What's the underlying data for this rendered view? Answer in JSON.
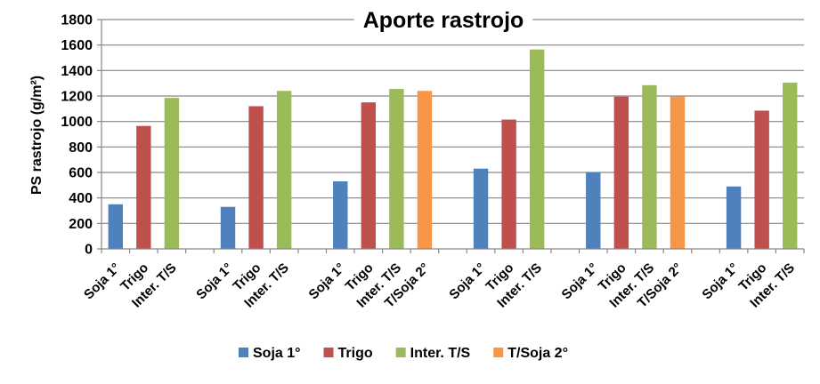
{
  "chart_data": {
    "type": "bar",
    "title": "Aporte rastrojo",
    "ylabel": "PS rastrojo (g/m²)",
    "ylim": [
      0,
      1800
    ],
    "yticks": [
      0,
      200,
      400,
      600,
      800,
      1000,
      1200,
      1400,
      1600,
      1800
    ],
    "grid": true,
    "legend_position": "bottom",
    "series": [
      {
        "name": "Soja 1°",
        "color": "#4F81BD"
      },
      {
        "name": "Trigo",
        "color": "#C0504D"
      },
      {
        "name": "Inter. T/S",
        "color": "#9BBB59"
      },
      {
        "name": "T/Soja 2°",
        "color": "#F79646"
      }
    ],
    "groups": [
      {
        "bars": [
          {
            "label": "Soja 1°",
            "series": 0,
            "value": 350
          },
          {
            "label": "Trigo",
            "series": 1,
            "value": 965
          },
          {
            "label": "Inter. T/S",
            "series": 2,
            "value": 1185
          }
        ]
      },
      {
        "bars": [
          {
            "label": "Soja 1°",
            "series": 0,
            "value": 330
          },
          {
            "label": "Trigo",
            "series": 1,
            "value": 1120
          },
          {
            "label": "Inter. T/S",
            "series": 2,
            "value": 1240
          }
        ]
      },
      {
        "bars": [
          {
            "label": "Soja 1°",
            "series": 0,
            "value": 530
          },
          {
            "label": "Trigo",
            "series": 1,
            "value": 1150
          },
          {
            "label": "Inter. T/S",
            "series": 2,
            "value": 1255
          },
          {
            "label": "T/Soja 2°",
            "series": 3,
            "value": 1240
          }
        ]
      },
      {
        "bars": [
          {
            "label": "Soja 1°",
            "series": 0,
            "value": 630
          },
          {
            "label": "Trigo",
            "series": 1,
            "value": 1015
          },
          {
            "label": "Inter. T/S",
            "series": 2,
            "value": 1565
          }
        ]
      },
      {
        "bars": [
          {
            "label": "Soja 1°",
            "series": 0,
            "value": 600
          },
          {
            "label": "Trigo",
            "series": 1,
            "value": 1195
          },
          {
            "label": "Inter. T/S",
            "series": 2,
            "value": 1285
          },
          {
            "label": "T/Soja 2°",
            "series": 3,
            "value": 1195
          }
        ]
      },
      {
        "bars": [
          {
            "label": "Soja 1°",
            "series": 0,
            "value": 490
          },
          {
            "label": "Trigo",
            "series": 1,
            "value": 1085
          },
          {
            "label": "Inter. T/S",
            "series": 2,
            "value": 1305
          }
        ]
      }
    ]
  }
}
